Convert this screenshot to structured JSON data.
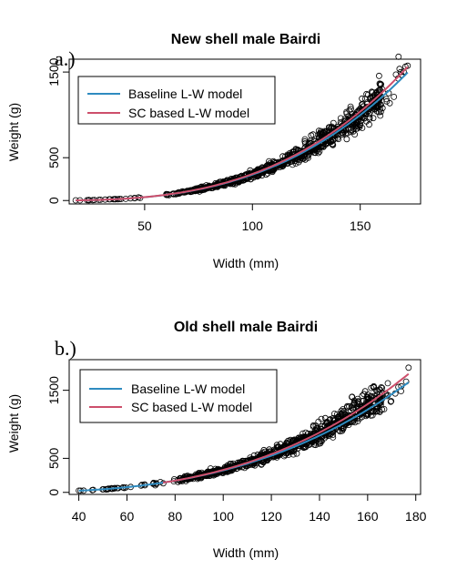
{
  "chart_data": [
    {
      "type": "scatter",
      "panel_label": "a.)",
      "title": "New shell male Bairdi",
      "xlabel": "Width (mm)",
      "ylabel": "Weight (g)",
      "xlim": [
        15,
        178
      ],
      "ylim": [
        -40,
        1650
      ],
      "xticks": [
        50,
        100,
        150
      ],
      "yticks": [
        0,
        500,
        1500
      ],
      "x_range": [
        18,
        172
      ],
      "scatter_a": 0.00038,
      "scatter_b": 2.95,
      "legend_position": "top-left",
      "series": [
        {
          "name": "Baseline L-W model",
          "color": "#2E8BC0",
          "a": 0.00038,
          "b": 2.95,
          "x_range": [
            18,
            172
          ]
        },
        {
          "name": "SC based L-W model",
          "color": "#CD4F6B",
          "a": 0.00034,
          "b": 2.98,
          "x_range": [
            18,
            172
          ]
        }
      ]
    },
    {
      "type": "scatter",
      "panel_label": "b.)",
      "title": "Old shell male Bairdi",
      "xlabel": "Width (mm)",
      "ylabel": "Weight (g)",
      "xlim": [
        36,
        182
      ],
      "ylim": [
        -30,
        1950
      ],
      "xticks": [
        40,
        60,
        80,
        100,
        120,
        140,
        160,
        180
      ],
      "yticks": [
        0,
        500,
        1500
      ],
      "x_range": [
        40,
        177
      ],
      "scatter_a": 0.00057,
      "scatter_b": 2.88,
      "legend_position": "top-left",
      "series": [
        {
          "name": "Baseline L-W model",
          "color": "#2E8BC0",
          "a": 0.00074,
          "b": 2.82,
          "x_range": [
            40,
            177
          ]
        },
        {
          "name": "SC based L-W model",
          "color": "#CD4F6B",
          "a": 0.0005,
          "b": 2.91,
          "x_range": [
            75,
            177
          ]
        }
      ]
    }
  ]
}
